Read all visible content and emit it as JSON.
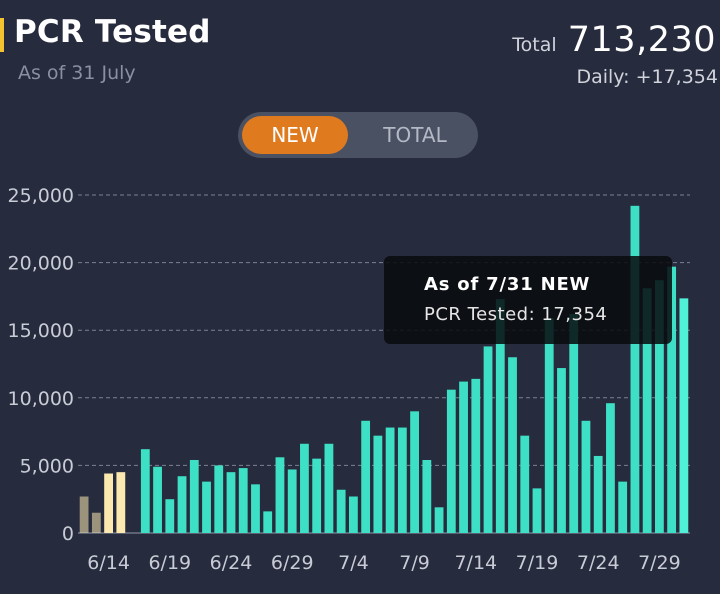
{
  "header": {
    "title": "PCR Tested",
    "subtitle": "As of 31 July",
    "total_label": "Total",
    "total_value": "713,230",
    "daily_text": "Daily: +17,354"
  },
  "toggle": {
    "new_label": "NEW",
    "total_label": "TOTAL",
    "selected": "NEW"
  },
  "tooltip": {
    "title": "As of 7/31 NEW",
    "body": "PCR Tested: 17,354"
  },
  "colors": {
    "background": "#262b3d",
    "bar": "#3de0c4",
    "bar_highlight": "#4ff2d6",
    "bar_early": "#fbe9b0",
    "accent": "#e07a1f",
    "gridline": "#7c8294"
  },
  "chart_data": {
    "type": "bar",
    "ylim": [
      0,
      25000
    ],
    "yticks": [
      0,
      5000,
      10000,
      15000,
      20000,
      25000
    ],
    "ytick_labels": [
      "0",
      "5,000",
      "10,000",
      "15,000",
      "20,000",
      "25,000"
    ],
    "xtick_labels": [
      {
        "index": 2,
        "label": "6/14"
      },
      {
        "index": 7,
        "label": "6/19"
      },
      {
        "index": 12,
        "label": "6/24"
      },
      {
        "index": 17,
        "label": "6/29"
      },
      {
        "index": 22,
        "label": "7/4"
      },
      {
        "index": 27,
        "label": "7/9"
      },
      {
        "index": 32,
        "label": "7/14"
      },
      {
        "index": 37,
        "label": "7/19"
      },
      {
        "index": 42,
        "label": "7/24"
      },
      {
        "index": 47,
        "label": "7/29"
      }
    ],
    "early_count": 4,
    "values": [
      2700,
      1500,
      4400,
      4500,
      0,
      6200,
      4900,
      2500,
      4200,
      5400,
      3800,
      5000,
      4500,
      4800,
      3600,
      1600,
      5600,
      4700,
      6600,
      5500,
      6600,
      3200,
      2700,
      8300,
      7200,
      7800,
      7800,
      9000,
      5400,
      1900,
      10600,
      11200,
      11400,
      13800,
      17300,
      13000,
      7200,
      3300,
      15900,
      12200,
      16200,
      8300,
      5700,
      9600,
      3800,
      24200,
      18100,
      18700,
      19700,
      17354
    ]
  }
}
